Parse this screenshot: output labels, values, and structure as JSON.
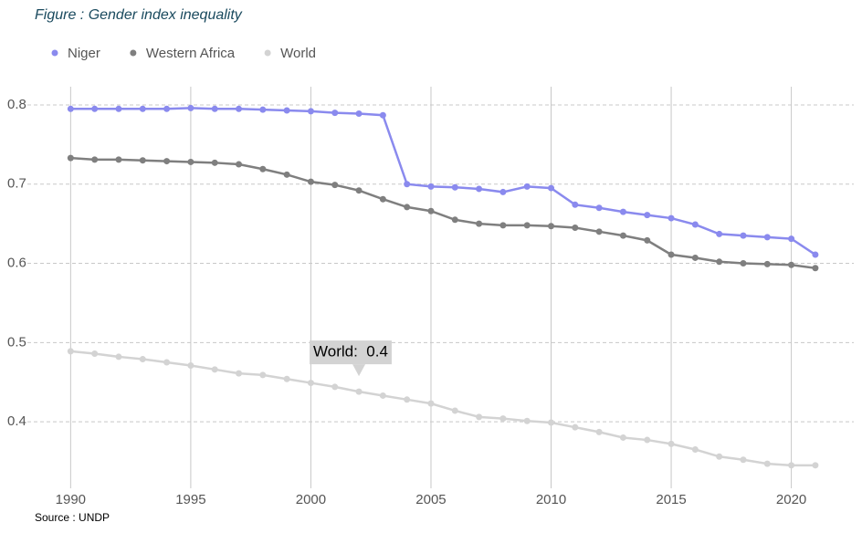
{
  "chart_data": {
    "type": "line",
    "title": "Figure :  Gender index inequality",
    "source": "Source :  UNDP",
    "tooltip": "World:  0.4",
    "x": [
      1990,
      1991,
      1992,
      1993,
      1994,
      1995,
      1996,
      1997,
      1998,
      1999,
      2000,
      2001,
      2002,
      2003,
      2004,
      2005,
      2006,
      2007,
      2008,
      2009,
      2010,
      2011,
      2012,
      2013,
      2014,
      2015,
      2016,
      2017,
      2018,
      2019,
      2020,
      2021
    ],
    "series": [
      {
        "name": "Niger",
        "color": "#8a8aee",
        "values": [
          0.795,
          0.795,
          0.795,
          0.795,
          0.795,
          0.796,
          0.795,
          0.795,
          0.794,
          0.793,
          0.792,
          0.79,
          0.789,
          0.787,
          0.7,
          0.697,
          0.696,
          0.694,
          0.69,
          0.697,
          0.695,
          0.674,
          0.67,
          0.665,
          0.661,
          0.657,
          0.649,
          0.637,
          0.635,
          0.633,
          0.631,
          0.611
        ]
      },
      {
        "name": "Western Africa",
        "color": "#7f7f7f",
        "values": [
          0.733,
          0.731,
          0.731,
          0.73,
          0.729,
          0.728,
          0.727,
          0.725,
          0.719,
          0.712,
          0.703,
          0.699,
          0.692,
          0.681,
          0.671,
          0.666,
          0.655,
          0.65,
          0.648,
          0.648,
          0.647,
          0.645,
          0.64,
          0.635,
          0.629,
          0.611,
          0.607,
          0.602,
          0.6,
          0.599,
          0.598,
          0.594
        ]
      },
      {
        "name": "World",
        "color": "#d3d3d3",
        "values": [
          0.489,
          0.486,
          0.482,
          0.479,
          0.475,
          0.471,
          0.466,
          0.461,
          0.459,
          0.454,
          0.449,
          0.444,
          0.438,
          0.433,
          0.428,
          0.423,
          0.414,
          0.406,
          0.404,
          0.401,
          0.399,
          0.393,
          0.387,
          0.38,
          0.377,
          0.372,
          0.365,
          0.356,
          0.352,
          0.347,
          0.345,
          0.345
        ]
      }
    ],
    "xlim": [
      1988.2,
      2022.6
    ],
    "xticks": [
      1990,
      1995,
      2000,
      2005,
      2010,
      2015,
      2020
    ],
    "ylim": [
      0.316,
      0.823
    ],
    "yticks": [
      0.4,
      0.5,
      0.6,
      0.7,
      0.8
    ],
    "grid": true
  }
}
